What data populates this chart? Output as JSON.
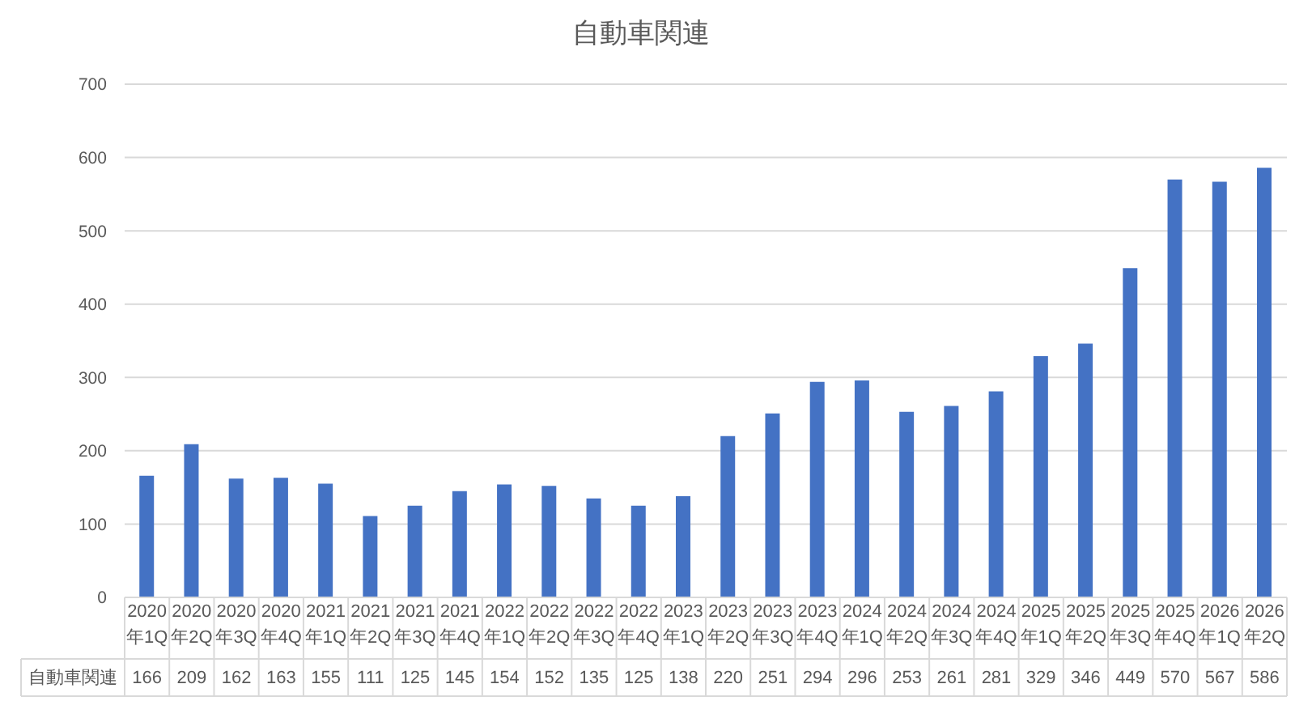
{
  "chart_data": {
    "type": "bar",
    "title": "自動車関連",
    "categories": [
      "2020年1Q",
      "2020年2Q",
      "2020年3Q",
      "2020年4Q",
      "2021年1Q",
      "2021年2Q",
      "2021年3Q",
      "2021年4Q",
      "2022年1Q",
      "2022年2Q",
      "2022年3Q",
      "2022年4Q",
      "2023年1Q",
      "2023年2Q",
      "2023年3Q",
      "2023年4Q",
      "2024年1Q",
      "2024年2Q",
      "2024年3Q",
      "2024年4Q",
      "2025年1Q",
      "2025年2Q",
      "2025年3Q",
      "2025年4Q",
      "2026年1Q",
      "2026年2Q"
    ],
    "series": [
      {
        "name": "自動車関連",
        "color": "#4472c4",
        "values": [
          166,
          209,
          162,
          163,
          155,
          111,
          125,
          145,
          154,
          152,
          135,
          125,
          138,
          220,
          251,
          294,
          296,
          253,
          261,
          281,
          329,
          346,
          449,
          570,
          567,
          586
        ]
      }
    ],
    "ylim": [
      0,
      700
    ],
    "yticks": [
      0,
      100,
      200,
      300,
      400,
      500,
      600,
      700
    ],
    "grid": "y",
    "data_labels": true
  }
}
